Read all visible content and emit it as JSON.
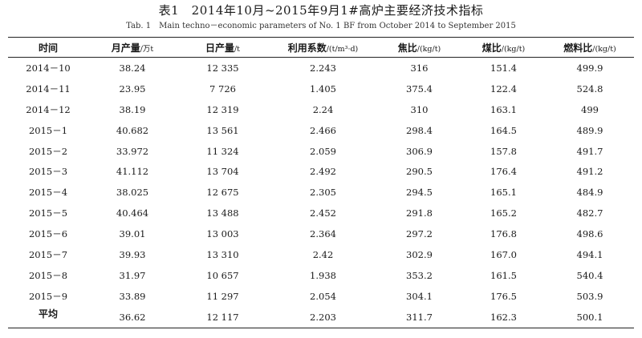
{
  "caption": {
    "cn": "表1　2014年10月~2015年9月1#高炉主要经济技术指标",
    "en": "Tab. 1　Main techno－economic parameters of No. 1 BF from October 2014 to September 2015"
  },
  "headers": [
    {
      "label": "时间",
      "unit": ""
    },
    {
      "label": "月产量",
      "unit": "/万t"
    },
    {
      "label": "日产量",
      "unit": "/t"
    },
    {
      "label": "利用系数",
      "unit": "/(t/m³·d)"
    },
    {
      "label": "焦比",
      "unit": "/(kg/t)"
    },
    {
      "label": "煤比",
      "unit": "/(kg/t)"
    },
    {
      "label": "燃料比",
      "unit": "/(kg/t)"
    }
  ],
  "rows": [
    [
      "2014－10",
      "38.24",
      "12 335",
      "2.243",
      "316",
      "151.4",
      "499.9"
    ],
    [
      "2014－11",
      "23.95",
      "7 726",
      "1.405",
      "375.4",
      "122.4",
      "524.8"
    ],
    [
      "2014－12",
      "38.19",
      "12 319",
      "2.24",
      "310",
      "163.1",
      "499"
    ],
    [
      "2015－1",
      "40.682",
      "13 561",
      "2.466",
      "298.4",
      "164.5",
      "489.9"
    ],
    [
      "2015－2",
      "33.972",
      "11 324",
      "2.059",
      "306.9",
      "157.8",
      "491.7"
    ],
    [
      "2015－3",
      "41.112",
      "13 704",
      "2.492",
      "290.5",
      "176.4",
      "491.2"
    ],
    [
      "2015－4",
      "38.025",
      "12 675",
      "2.305",
      "294.5",
      "165.1",
      "484.9"
    ],
    [
      "2015－5",
      "40.464",
      "13 488",
      "2.452",
      "291.8",
      "165.2",
      "482.7"
    ],
    [
      "2015－6",
      "39.01",
      "13 003",
      "2.364",
      "297.2",
      "176.8",
      "498.6"
    ],
    [
      "2015－7",
      "39.93",
      "13 310",
      "2.42",
      "302.9",
      "167.0",
      "494.1"
    ],
    [
      "2015－8",
      "31.97",
      "10 657",
      "1.938",
      "353.2",
      "161.5",
      "540.4"
    ],
    [
      "2015－9",
      "33.89",
      "11 297",
      "2.054",
      "304.1",
      "176.5",
      "503.9"
    ],
    [
      "平均",
      "36.62",
      "12 117",
      "2.203",
      "311.7",
      "162.3",
      "500.1"
    ]
  ]
}
